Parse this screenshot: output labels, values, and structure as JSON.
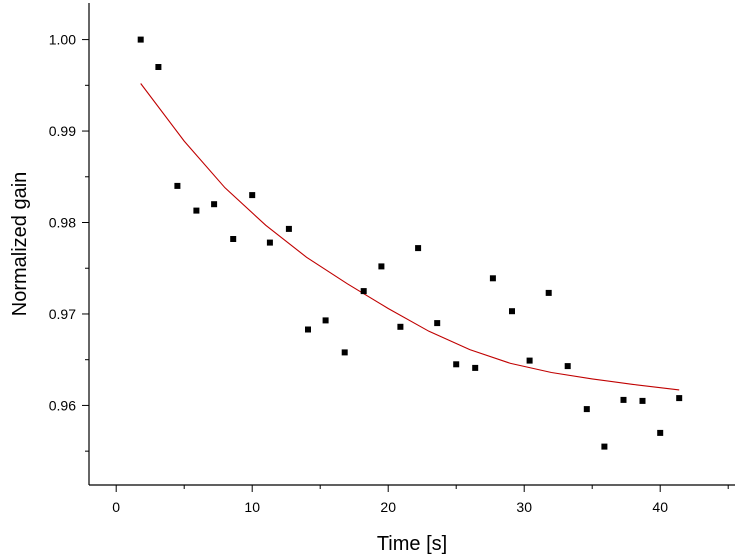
{
  "chart_data": {
    "type": "scatter",
    "title": "",
    "xlabel": "Time [s]",
    "ylabel": "Normalized gain",
    "xlim": [
      -2,
      45.5
    ],
    "ylim": [
      0.9513,
      1.004
    ],
    "xticks": [
      0,
      10,
      20,
      30,
      40
    ],
    "yticks": [
      0.96,
      0.97,
      0.98,
      0.99,
      1.0
    ],
    "xtick_labels": [
      "0",
      "10",
      "20",
      "30",
      "40"
    ],
    "ytick_labels": [
      "0.96",
      "0.97",
      "0.98",
      "0.99",
      "1.00"
    ],
    "grid": false,
    "legend": "none",
    "colors": {
      "points": "#000000",
      "fit": "#c00000",
      "axes": "#000000"
    },
    "series": [
      {
        "kind": "points",
        "x": [
          1.8,
          3.1,
          4.5,
          5.9,
          7.2,
          8.6,
          10.0,
          11.3,
          12.7,
          14.1,
          15.4,
          16.8,
          18.2,
          19.5,
          20.9,
          22.2,
          23.6,
          25.0,
          26.4,
          27.7,
          29.1,
          30.4,
          31.8,
          33.2,
          34.6,
          35.9,
          37.3,
          38.7,
          40.0,
          41.4
        ],
        "y": [
          1.0,
          0.997,
          0.984,
          0.9813,
          0.982,
          0.9782,
          0.983,
          0.9778,
          0.9793,
          0.9683,
          0.9693,
          0.9658,
          0.9725,
          0.9752,
          0.9686,
          0.9772,
          0.969,
          0.9645,
          0.9641,
          0.9739,
          0.9703,
          0.9649,
          0.9723,
          0.9643,
          0.9596,
          0.9555,
          0.9606,
          0.9605,
          0.957,
          0.9608
        ]
      },
      {
        "kind": "fit-line",
        "x": [
          1.8,
          5.0,
          8.0,
          11.0,
          14.0,
          17.0,
          20.0,
          23.0,
          26.0,
          29.0,
          32.0,
          35.0,
          38.0,
          41.4
        ],
        "y": [
          0.9952,
          0.9889,
          0.9838,
          0.9797,
          0.9762,
          0.9733,
          0.9706,
          0.9681,
          0.9661,
          0.9646,
          0.9636,
          0.9629,
          0.9623,
          0.9617
        ]
      }
    ]
  }
}
